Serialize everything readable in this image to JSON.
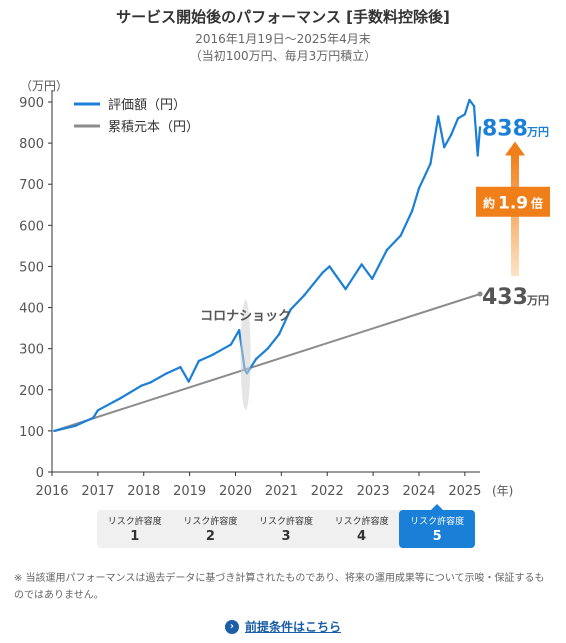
{
  "header": {
    "title": "サービス開始後のパフォーマンス [手数料控除後]",
    "period": "2016年1月19日～2025年4月末",
    "condition": "（当初100万円、毎月3万円積立）"
  },
  "chart_data": {
    "type": "line",
    "yunit": "（万円）",
    "xunit": "(年)",
    "ylim": [
      0,
      900
    ],
    "yticks": [
      0,
      100,
      200,
      300,
      400,
      500,
      600,
      700,
      800,
      900
    ],
    "xticks": [
      "2016",
      "2017",
      "2018",
      "2019",
      "2020",
      "2021",
      "2022",
      "2023",
      "2024",
      "2025"
    ],
    "xlim": [
      2016.0,
      2025.33
    ],
    "series": [
      {
        "name": "評価額（円）",
        "color": "#1a7fd6",
        "x": [
          2016.05,
          2016.5,
          2016.9,
          2017.0,
          2017.5,
          2017.95,
          2018.15,
          2018.5,
          2018.8,
          2018.98,
          2019.2,
          2019.5,
          2019.9,
          2020.08,
          2020.2,
          2020.25,
          2020.45,
          2020.7,
          2020.95,
          2021.2,
          2021.5,
          2021.9,
          2022.05,
          2022.4,
          2022.75,
          2022.98,
          2023.3,
          2023.6,
          2023.85,
          2024.0,
          2024.25,
          2024.42,
          2024.55,
          2024.7,
          2024.85,
          2025.0,
          2025.1,
          2025.2,
          2025.28,
          2025.33
        ],
        "values": [
          100,
          112,
          132,
          150,
          180,
          210,
          218,
          240,
          255,
          220,
          270,
          285,
          310,
          345,
          250,
          240,
          275,
          300,
          335,
          395,
          430,
          485,
          500,
          445,
          505,
          470,
          540,
          575,
          635,
          690,
          750,
          865,
          790,
          820,
          860,
          870,
          905,
          890,
          770,
          838
        ],
        "end_label": "838",
        "end_unit": "万円"
      },
      {
        "name": "累積元本（円）",
        "color": "#8c8c8c",
        "x": [
          2016.05,
          2025.33
        ],
        "values": [
          100,
          433
        ],
        "end_label": "433",
        "end_unit": "万円"
      }
    ],
    "annotations": {
      "event": "コロナショック",
      "multiple_prefix": "約",
      "multiple_value": "1.9",
      "multiple_suffix": "倍"
    },
    "colors": {
      "accent": "#1a7fd6",
      "principal": "#8c8c8c",
      "arrow": "#f07f1a"
    }
  },
  "risk_selector": {
    "items": [
      {
        "label": "リスク許容度",
        "value": "1",
        "active": false
      },
      {
        "label": "リスク許容度",
        "value": "2",
        "active": false
      },
      {
        "label": "リスク許容度",
        "value": "3",
        "active": false
      },
      {
        "label": "リスク許容度",
        "value": "4",
        "active": false
      },
      {
        "label": "リスク許容度",
        "value": "5",
        "active": true
      }
    ]
  },
  "footer": {
    "note": "※ 当該運用パフォーマンスは過去データに基づき計算されたものであり、将来の運用成果等について示唆・保証するものではありません。",
    "link_label": "前提条件はこちら",
    "link_icon": "chevron-right-circle-icon"
  }
}
